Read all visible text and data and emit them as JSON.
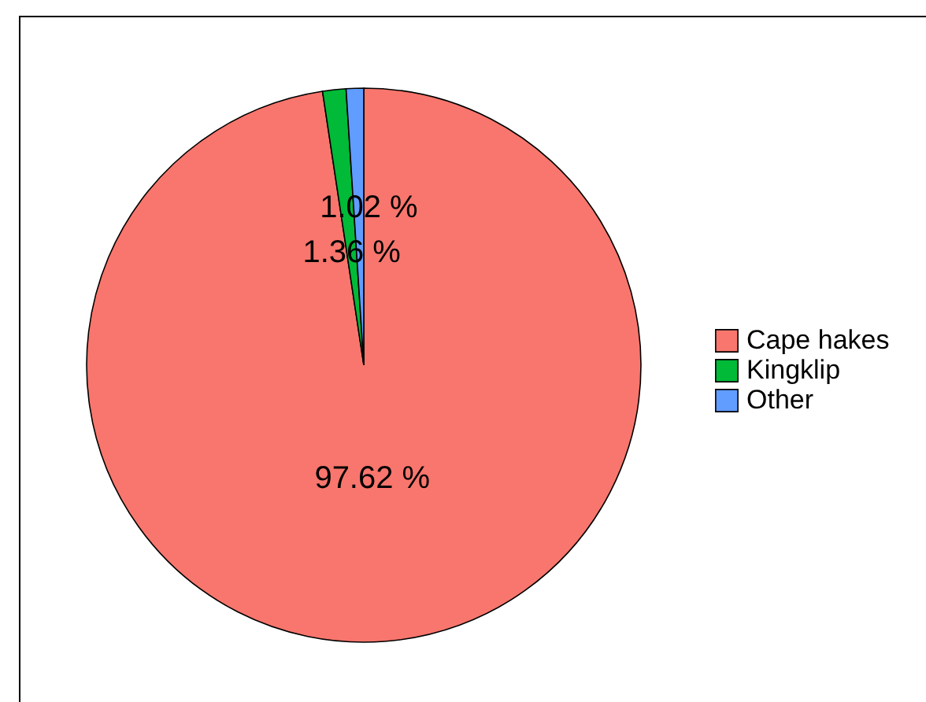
{
  "chart_data": {
    "type": "pie",
    "categories": [
      "Cape hakes",
      "Kingklip",
      "Other"
    ],
    "values": [
      97.62,
      1.36,
      1.02
    ],
    "colors": [
      "#f8766d",
      "#00ba38",
      "#619cff"
    ],
    "value_labels": [
      "97.62 %",
      "1.36 %",
      "1.02 %"
    ],
    "legend": "right"
  }
}
